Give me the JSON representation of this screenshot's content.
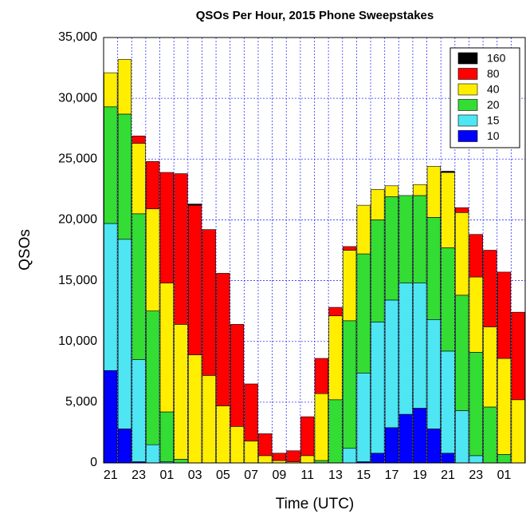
{
  "chart_data": {
    "type": "bar",
    "stacked": true,
    "title": "QSOs Per Hour, 2015 Phone Sweepstakes",
    "x_label": "Time (UTC)",
    "y_label": "QSOs",
    "categories": [
      "21",
      null,
      "23",
      null,
      "01",
      null,
      "03",
      null,
      "05",
      null,
      "07",
      null,
      "09",
      null,
      "11",
      null,
      "13",
      null,
      "15",
      null,
      "17",
      null,
      "19",
      null,
      "21",
      null,
      "23",
      null,
      "01",
      null
    ],
    "series": [
      {
        "name": "10",
        "color": "#0000ff",
        "values": [
          7600,
          2800,
          100,
          0,
          0,
          0,
          0,
          0,
          0,
          0,
          0,
          0,
          0,
          0,
          0,
          0,
          0,
          0,
          100,
          800,
          2900,
          4000,
          4500,
          2800,
          800,
          0,
          0,
          0,
          0,
          0
        ]
      },
      {
        "name": "15",
        "color": "#4de6f2",
        "values": [
          12100,
          15600,
          8400,
          1500,
          100,
          0,
          0,
          0,
          0,
          0,
          0,
          0,
          0,
          0,
          0,
          0,
          0,
          1200,
          7300,
          10800,
          10500,
          10800,
          10300,
          9000,
          8400,
          4300,
          600,
          0,
          0,
          0
        ]
      },
      {
        "name": "20",
        "color": "#33dd33",
        "values": [
          9600,
          10300,
          12000,
          11000,
          4100,
          300,
          0,
          0,
          0,
          0,
          0,
          0,
          0,
          0,
          0,
          200,
          5200,
          10500,
          9800,
          8400,
          8500,
          7200,
          7200,
          8400,
          8500,
          9500,
          8500,
          4600,
          700,
          0
        ]
      },
      {
        "name": "40",
        "color": "#ffee00",
        "values": [
          2800,
          4500,
          5800,
          8400,
          10600,
          11100,
          8900,
          7200,
          4700,
          3000,
          1800,
          600,
          200,
          100,
          600,
          5500,
          6900,
          5800,
          4000,
          2500,
          900,
          0,
          900,
          4200,
          6200,
          6800,
          6200,
          6600,
          7900,
          5200
        ]
      },
      {
        "name": "80",
        "color": "#ff0000",
        "values": [
          0,
          0,
          600,
          3900,
          9100,
          12400,
          12300,
          12000,
          10900,
          8400,
          4700,
          1800,
          600,
          900,
          3200,
          2900,
          700,
          300,
          0,
          0,
          0,
          0,
          0,
          0,
          0,
          400,
          3500,
          6300,
          7100,
          7200
        ]
      },
      {
        "name": "160",
        "color": "#000000",
        "values": [
          0,
          0,
          0,
          0,
          0,
          0,
          100,
          0,
          0,
          0,
          0,
          0,
          0,
          0,
          0,
          0,
          0,
          0,
          0,
          0,
          0,
          0,
          0,
          0,
          100,
          0,
          0,
          0,
          0,
          0
        ]
      }
    ],
    "ylim": [
      0,
      35000
    ],
    "yticks": [
      0,
      {
        "value": 5000,
        "label": "5,000"
      },
      {
        "value": 10000,
        "label": "10,000"
      },
      {
        "value": 15000,
        "label": "15,000"
      },
      {
        "value": 20000,
        "label": "20,000"
      },
      {
        "value": 25000,
        "label": "25,000"
      },
      {
        "value": 30000,
        "label": "30,000"
      },
      {
        "value": 35000,
        "label": "35,000"
      }
    ],
    "grid": true,
    "grid_color": "#3333ff",
    "legend": "upper right"
  }
}
